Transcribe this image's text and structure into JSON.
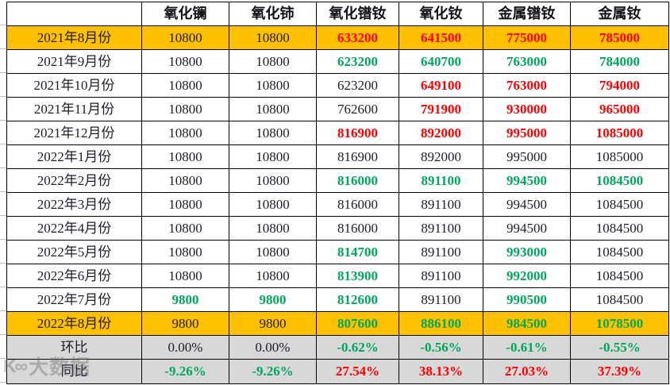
{
  "theme": {
    "highlight_orange": "#FFC000",
    "summary_gray": "#D8D8D8",
    "up_red": "#FE0000",
    "down_green": "#00A75C",
    "text_black": "#1D1D26",
    "border_black": "#000000"
  },
  "watermark": {
    "logo": "K∞",
    "text": "大数据"
  },
  "table": {
    "columns": [
      "",
      "氧化镧",
      "氧化铈",
      "氧化镨钕",
      "氧化钕",
      "金属镨钕",
      "金属钕"
    ],
    "rows": [
      {
        "label": "2021年8月份",
        "bg": "orange",
        "values": [
          "10800",
          "10800",
          "633200",
          "641500",
          "775000",
          "785000"
        ],
        "colors": [
          "k",
          "k",
          "r",
          "r",
          "r",
          "r"
        ]
      },
      {
        "label": "2021年9月份",
        "bg": "white",
        "values": [
          "10800",
          "10800",
          "623200",
          "640700",
          "763000",
          "784000"
        ],
        "colors": [
          "k",
          "k",
          "g",
          "g",
          "g",
          "g"
        ]
      },
      {
        "label": "2021年10月份",
        "bg": "white",
        "values": [
          "10800",
          "10800",
          "623200",
          "649100",
          "763000",
          "794000"
        ],
        "colors": [
          "k",
          "k",
          "k",
          "r",
          "r",
          "r"
        ]
      },
      {
        "label": "2021年11月份",
        "bg": "white",
        "values": [
          "10800",
          "10800",
          "762600",
          "791900",
          "930000",
          "965000"
        ],
        "colors": [
          "k",
          "k",
          "k",
          "r",
          "r",
          "r"
        ]
      },
      {
        "label": "2021年12月份",
        "bg": "white",
        "values": [
          "10800",
          "10800",
          "816900",
          "892000",
          "995000",
          "1085000"
        ],
        "colors": [
          "k",
          "k",
          "r",
          "r",
          "r",
          "r"
        ]
      },
      {
        "label": "2022年1月份",
        "bg": "white",
        "values": [
          "10800",
          "10800",
          "816900",
          "892000",
          "995000",
          "1085000"
        ],
        "colors": [
          "k",
          "k",
          "k",
          "k",
          "k",
          "k"
        ]
      },
      {
        "label": "2022年2月份",
        "bg": "white",
        "values": [
          "10800",
          "10800",
          "816000",
          "891100",
          "994500",
          "1084500"
        ],
        "colors": [
          "k",
          "k",
          "g",
          "g",
          "g",
          "g"
        ]
      },
      {
        "label": "2022年3月份",
        "bg": "white",
        "values": [
          "10800",
          "10800",
          "816000",
          "891100",
          "994500",
          "1084500"
        ],
        "colors": [
          "k",
          "k",
          "k",
          "k",
          "k",
          "k"
        ]
      },
      {
        "label": "2022年4月份",
        "bg": "white",
        "values": [
          "10800",
          "10800",
          "816000",
          "891100",
          "994500",
          "1084500"
        ],
        "colors": [
          "k",
          "k",
          "k",
          "k",
          "k",
          "k"
        ]
      },
      {
        "label": "2022年5月份",
        "bg": "white",
        "values": [
          "10800",
          "10800",
          "814700",
          "891100",
          "993000",
          "1084500"
        ],
        "colors": [
          "k",
          "k",
          "g",
          "k",
          "g",
          "k"
        ]
      },
      {
        "label": "2022年6月份",
        "bg": "white",
        "values": [
          "10800",
          "10800",
          "813900",
          "891100",
          "992000",
          "1084500"
        ],
        "colors": [
          "k",
          "k",
          "g",
          "k",
          "g",
          "k"
        ]
      },
      {
        "label": "2022年7月份",
        "bg": "white",
        "values": [
          "9800",
          "9800",
          "812600",
          "891100",
          "990500",
          "1084500"
        ],
        "colors": [
          "g",
          "g",
          "g",
          "k",
          "g",
          "k"
        ]
      },
      {
        "label": "2022年8月份",
        "bg": "orange",
        "values": [
          "9800",
          "9800",
          "807600",
          "886100",
          "984500",
          "1078500"
        ],
        "colors": [
          "k",
          "k",
          "g",
          "g",
          "g",
          "g"
        ]
      },
      {
        "label": "环比",
        "bg": "gray",
        "values": [
          "0.00%",
          "0.00%",
          "-0.62%",
          "-0.56%",
          "-0.61%",
          "-0.55%"
        ],
        "colors": [
          "k",
          "k",
          "g",
          "g",
          "g",
          "g"
        ]
      },
      {
        "label": "同比",
        "bg": "gray",
        "values": [
          "-9.26%",
          "-9.26%",
          "27.54%",
          "38.13%",
          "27.03%",
          "37.39%"
        ],
        "colors": [
          "g",
          "g",
          "r",
          "r",
          "r",
          "r"
        ]
      }
    ]
  }
}
